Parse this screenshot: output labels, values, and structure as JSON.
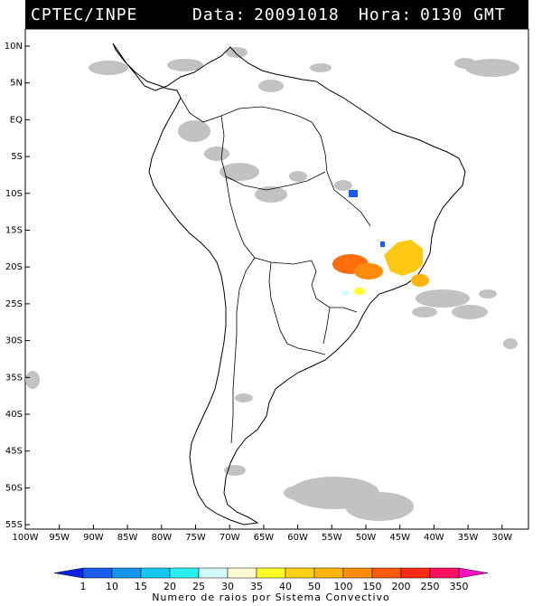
{
  "header": {
    "source": "CPTEC/INPE",
    "date_label": "Data:",
    "date_value": "20091018",
    "time_label": "Hora:",
    "time_value": "0130 GMT"
  },
  "lat_labels": [
    "10N",
    "5N",
    "EQ",
    "5S",
    "10S",
    "15S",
    "20S",
    "25S",
    "30S",
    "35S",
    "40S",
    "45S",
    "50S",
    "55S"
  ],
  "lon_labels": [
    "100W",
    "95W",
    "90W",
    "85W",
    "80W",
    "75W",
    "70W",
    "65W",
    "60W",
    "55W",
    "50W",
    "45W",
    "40W",
    "35W",
    "30W"
  ],
  "legend": {
    "title": "Numero de raios por Sistema Convectivo",
    "ticks": [
      "1",
      "10",
      "15",
      "20",
      "25",
      "30",
      "35",
      "40",
      "50",
      "100",
      "150",
      "200",
      "250",
      "350"
    ],
    "colors": [
      "#0a24e6",
      "#1a5cf0",
      "#1496ee",
      "#14c8f0",
      "#28f0f0",
      "#d2fafa",
      "#fffad2",
      "#ffff28",
      "#ffd214",
      "#ffb40a",
      "#ff8c0a",
      "#ff5a0a",
      "#ff2a14",
      "#ff1060",
      "#ff10c0"
    ]
  },
  "colors": {
    "header_bg": "#000000",
    "frame_bg": "#ffffff",
    "cloud_gray": "#b4b4b4",
    "coast": "#000000"
  }
}
